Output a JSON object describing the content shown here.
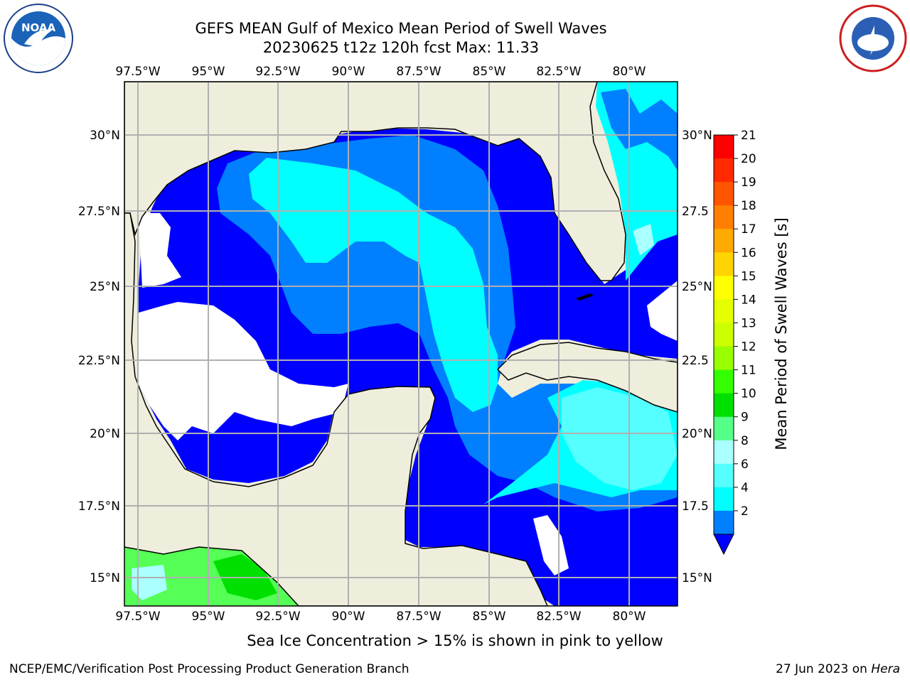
{
  "title_line1": "GEFS MEAN Gulf of Mexico Mean Period of Swell Waves",
  "title_line2": "20230625 t12z 120h fcst   Max: 11.33",
  "lon_labels": [
    "97.5°W",
    "95°W",
    "92.5°W",
    "90°W",
    "87.5°W",
    "85°W",
    "82.5°W",
    "80°W"
  ],
  "lat_labels_left": [
    "30°N",
    "27.5°N",
    "25°N",
    "22.5°N",
    "20°N",
    "17.5°N",
    "15°N"
  ],
  "lat_labels_right": [
    "30°N",
    "27.5",
    "25°N",
    "22.5",
    "20°N",
    "17.5",
    "15°N"
  ],
  "colorbar": {
    "label": "Mean Period of Swell Waves [s]",
    "ticks": [
      "21",
      "20",
      "19",
      "18",
      "17",
      "16",
      "15",
      "14",
      "13",
      "12",
      "11",
      "10",
      "9",
      "8",
      "6",
      "4",
      "2"
    ],
    "colors": [
      "#ff0000",
      "#ff2a00",
      "#ff5500",
      "#ff7f00",
      "#ffaa00",
      "#ffd400",
      "#ffff00",
      "#e5ff00",
      "#cbff00",
      "#99ff00",
      "#33ff00",
      "#00e000",
      "#55ff88",
      "#aaffff",
      "#55ffff",
      "#00ffff",
      "#0080ff"
    ],
    "extend_color": "#0000ff"
  },
  "note": "Sea Ice Concentration > 15% is shown in pink to yellow",
  "footer_left": "NCEP/EMC/Verification Post Processing Product Generation Branch",
  "footer_date": "27 Jun 2023 on ",
  "footer_machine": "Hera",
  "logos": {
    "left": "noaa-logo",
    "right": "nws-logo"
  }
}
